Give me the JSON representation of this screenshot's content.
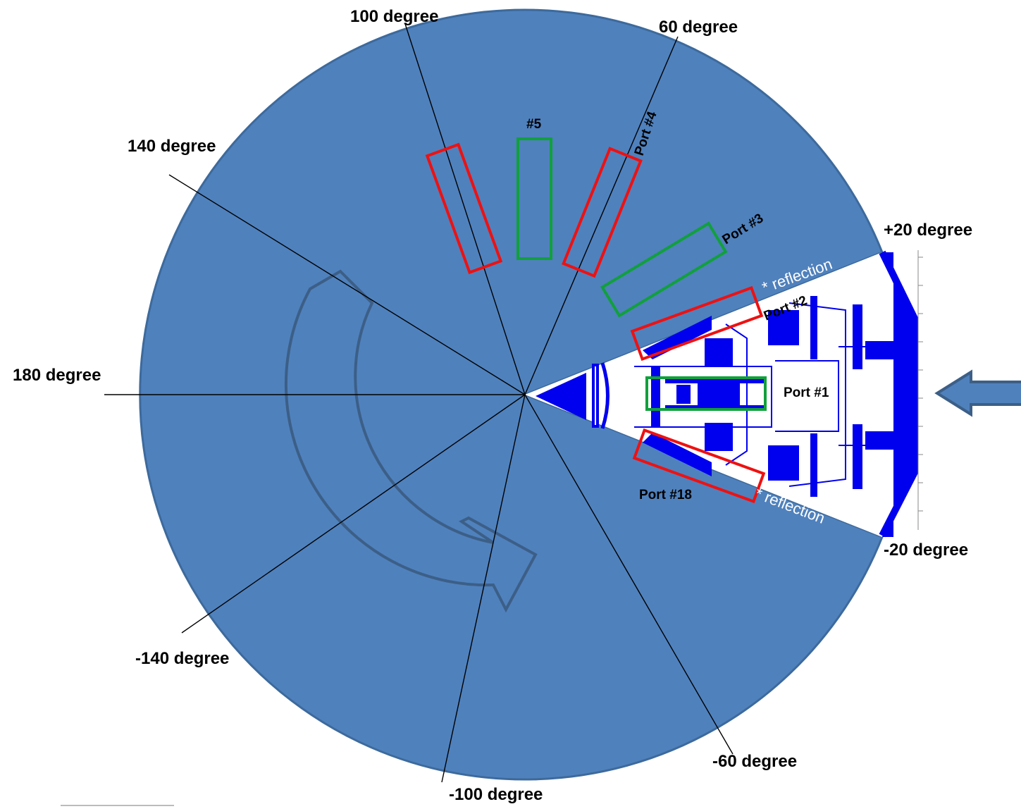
{
  "colors": {
    "disk_fill": "#4f81bd",
    "disk_edge": "#3d6a9c",
    "sector_fill": "#ffffff",
    "structure_blue": "#0000ee",
    "port_red": "#ee1111",
    "port_green": "#11a03c",
    "arrow_edge": "#3c5f87",
    "text": "#000000",
    "reflection_text": "#ffffff"
  },
  "angles": {
    "a100": "100 degree",
    "a60": "60 degree",
    "a140": "140 degree",
    "a20p": "+20 degree",
    "a180": "180 degree",
    "a20m": "-20 degree",
    "am140": "-140 degree",
    "am60": "-60 degree",
    "am100": "-100 degree"
  },
  "ports": {
    "p5": "#5",
    "p4": "Port #4",
    "p3": "Port #3",
    "p2": "Port #2",
    "p1": "Port #1",
    "p18": "Port #18"
  },
  "reflection": {
    "upper": "* reflection",
    "lower": "* reflection"
  },
  "icons": {
    "rotation": "curved-rotation-arrow-icon",
    "incident": "incident-beam-arrow-icon"
  }
}
